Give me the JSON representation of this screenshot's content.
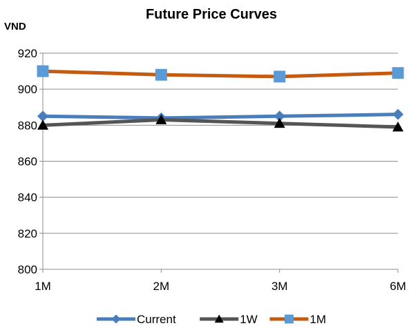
{
  "chart_data": {
    "type": "line",
    "title": "Future Price Curves",
    "xlabel": "",
    "ylabel": "VND",
    "categories": [
      "1M",
      "2M",
      "3M",
      "6M"
    ],
    "ylim": [
      800,
      920
    ],
    "yticks": [
      800,
      820,
      840,
      860,
      880,
      900,
      920
    ],
    "grid": true,
    "legend_position": "bottom",
    "series": [
      {
        "name": "Current",
        "values": [
          885,
          884,
          885,
          886
        ],
        "color": "#4a7ebb",
        "marker": "diamond"
      },
      {
        "name": "1W",
        "values": [
          880,
          883,
          881,
          879
        ],
        "color": "#555555",
        "marker": "triangle"
      },
      {
        "name": "1M",
        "values": [
          910,
          908,
          907,
          909
        ],
        "color": "#c55a11",
        "marker": "square",
        "marker_color": "#5b9bd5"
      }
    ]
  }
}
